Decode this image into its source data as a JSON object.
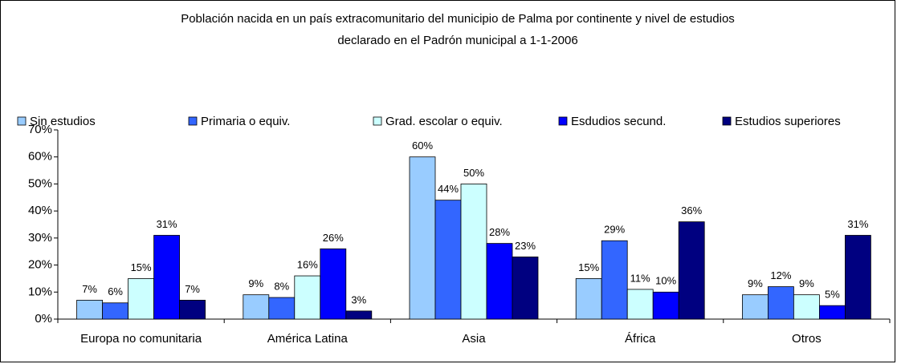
{
  "chart_data": {
    "type": "bar",
    "title": [
      "Población nacida en un país extracomunitario del municipio de Palma por continente y nivel de estudios",
      "declarado en el Padrón municipal a  1-1-2006"
    ],
    "categories": [
      "Europa no comunitaria",
      "América Latina",
      "Asia",
      "África",
      "Otros"
    ],
    "series": [
      {
        "name": "Sin estudios",
        "color": "#99ccff",
        "values": [
          7,
          9,
          60,
          15,
          9
        ],
        "value_labels": [
          "7%",
          "9%",
          "60%",
          "15%",
          "9%"
        ]
      },
      {
        "name": "Primaria o equiv.",
        "color": "#3366ff",
        "values": [
          6,
          8,
          44,
          29,
          12
        ],
        "value_labels": [
          "6%",
          "8%",
          "44%",
          "29%",
          "12%"
        ]
      },
      {
        "name": "Grad. escolar o equiv.",
        "color": "#ccffff",
        "values": [
          15,
          16,
          50,
          11,
          9
        ],
        "value_labels": [
          "15%",
          "16%",
          "50%",
          "11%",
          "9%"
        ]
      },
      {
        "name": "Esdudios secund.",
        "color": "#0000ff",
        "values": [
          31,
          26,
          28,
          10,
          5
        ],
        "value_labels": [
          "31%",
          "26%",
          "28%",
          "10%",
          "5%"
        ]
      },
      {
        "name": "Estudios superiores",
        "color": "#000080",
        "values": [
          7,
          3,
          23,
          36,
          31
        ],
        "value_labels": [
          "7%",
          "3%",
          "23%",
          "36%",
          "31%"
        ]
      }
    ],
    "ylim": [
      0,
      70
    ],
    "yticks": [
      {
        "value": 0,
        "label": "0%"
      },
      {
        "value": 10,
        "label": "10%"
      },
      {
        "value": 20,
        "label": "20%"
      },
      {
        "value": 30,
        "label": "30%"
      },
      {
        "value": 40,
        "label": "40%"
      },
      {
        "value": 50,
        "label": "50%"
      },
      {
        "value": 60,
        "label": "60%"
      },
      {
        "value": 70,
        "label": "70%"
      }
    ],
    "legend": "top"
  }
}
